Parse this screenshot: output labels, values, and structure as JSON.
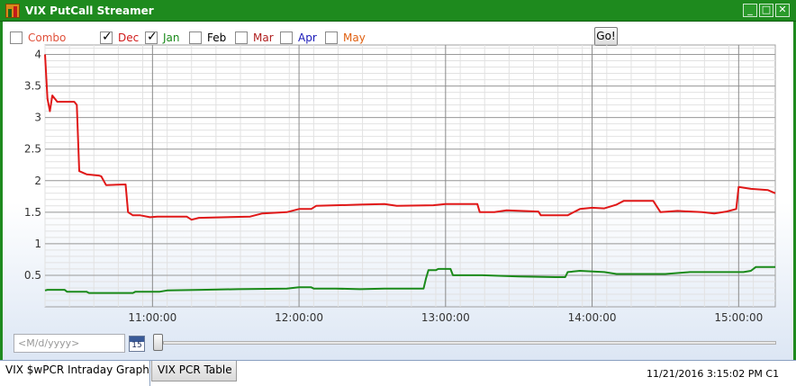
{
  "window": {
    "title": "VIX PutCall Streamer",
    "minimize_glyph": "_",
    "maximize_glyph": "□",
    "close_glyph": "✕",
    "frame_color": "#1e8a1e"
  },
  "toolbar": {
    "checkboxes": [
      {
        "label": "Combo",
        "checked": false,
        "color": "#e0503a"
      },
      {
        "label": "Dec",
        "checked": true,
        "color": "#d01818"
      },
      {
        "label": "Jan",
        "checked": true,
        "color": "#1a8a1a"
      },
      {
        "label": "Feb",
        "checked": false,
        "color": "#000000"
      },
      {
        "label": "Mar",
        "checked": false,
        "color": "#b02020"
      },
      {
        "label": "Apr",
        "checked": false,
        "color": "#1a1ab8"
      },
      {
        "label": "May",
        "checked": false,
        "color": "#e06010"
      }
    ],
    "go_label": "Go!"
  },
  "chart_data": {
    "type": "line",
    "title": "",
    "xlabel": "",
    "ylabel": "",
    "x_unit": "time",
    "xlim": [
      "10:16",
      "15:15"
    ],
    "ylim": [
      0,
      4.15
    ],
    "x_ticks": [
      "11:00:00",
      "12:00:00",
      "13:00:00",
      "14:00:00",
      "15:00:00"
    ],
    "y_ticks": [
      "0.5",
      "1",
      "1.5",
      "2",
      "2.5",
      "3",
      "3.5",
      "4"
    ],
    "grid": true,
    "legend": "none",
    "series": [
      {
        "color": "#e01818",
        "points": [
          [
            "10:16",
            4.0
          ],
          [
            "10:17",
            3.3
          ],
          [
            "10:18",
            3.1
          ],
          [
            "10:19",
            3.35
          ],
          [
            "10:21",
            3.25
          ],
          [
            "10:28",
            3.25
          ],
          [
            "10:29",
            3.2
          ],
          [
            "10:30",
            2.15
          ],
          [
            "10:33",
            2.1
          ],
          [
            "10:38",
            2.08
          ],
          [
            "10:39",
            2.07
          ],
          [
            "10:41",
            1.93
          ],
          [
            "10:49",
            1.94
          ],
          [
            "10:50",
            1.5
          ],
          [
            "10:52",
            1.45
          ],
          [
            "10:55",
            1.45
          ],
          [
            "10:59",
            1.42
          ],
          [
            "11:02",
            1.43
          ],
          [
            "11:14",
            1.43
          ],
          [
            "11:16",
            1.38
          ],
          [
            "11:19",
            1.41
          ],
          [
            "11:40",
            1.43
          ],
          [
            "11:45",
            1.48
          ],
          [
            "11:55",
            1.5
          ],
          [
            "12:00",
            1.55
          ],
          [
            "12:05",
            1.55
          ],
          [
            "12:07",
            1.6
          ],
          [
            "12:25",
            1.62
          ],
          [
            "12:35",
            1.63
          ],
          [
            "12:40",
            1.6
          ],
          [
            "12:55",
            1.61
          ],
          [
            "13:00",
            1.63
          ],
          [
            "13:13",
            1.63
          ],
          [
            "13:14",
            1.5
          ],
          [
            "13:20",
            1.5
          ],
          [
            "13:25",
            1.53
          ],
          [
            "13:38",
            1.51
          ],
          [
            "13:39",
            1.45
          ],
          [
            "13:45",
            1.45
          ],
          [
            "13:50",
            1.45
          ],
          [
            "13:55",
            1.55
          ],
          [
            "14:00",
            1.57
          ],
          [
            "14:05",
            1.56
          ],
          [
            "14:10",
            1.62
          ],
          [
            "14:13",
            1.68
          ],
          [
            "14:25",
            1.68
          ],
          [
            "14:28",
            1.5
          ],
          [
            "14:35",
            1.52
          ],
          [
            "14:45",
            1.5
          ],
          [
            "14:50",
            1.48
          ],
          [
            "14:55",
            1.51
          ],
          [
            "14:59",
            1.55
          ],
          [
            "15:00",
            1.9
          ],
          [
            "15:05",
            1.87
          ],
          [
            "15:12",
            1.85
          ],
          [
            "15:15",
            1.8
          ]
        ]
      },
      {
        "color": "#1a8a1a",
        "points": [
          [
            "10:16",
            0.26
          ],
          [
            "10:17",
            0.27
          ],
          [
            "10:24",
            0.27
          ],
          [
            "10:25",
            0.24
          ],
          [
            "10:33",
            0.24
          ],
          [
            "10:34",
            0.22
          ],
          [
            "10:52",
            0.22
          ],
          [
            "10:53",
            0.24
          ],
          [
            "11:03",
            0.24
          ],
          [
            "11:06",
            0.26
          ],
          [
            "11:20",
            0.27
          ],
          [
            "11:35",
            0.28
          ],
          [
            "11:55",
            0.29
          ],
          [
            "12:00",
            0.31
          ],
          [
            "12:05",
            0.31
          ],
          [
            "12:06",
            0.29
          ],
          [
            "12:15",
            0.29
          ],
          [
            "12:25",
            0.28
          ],
          [
            "12:35",
            0.29
          ],
          [
            "12:51",
            0.29
          ],
          [
            "12:52",
            0.45
          ],
          [
            "12:53",
            0.58
          ],
          [
            "12:56",
            0.58
          ],
          [
            "12:57",
            0.6
          ],
          [
            "13:02",
            0.6
          ],
          [
            "13:03",
            0.5
          ],
          [
            "13:15",
            0.5
          ],
          [
            "13:30",
            0.48
          ],
          [
            "13:45",
            0.47
          ],
          [
            "13:49",
            0.47
          ],
          [
            "13:50",
            0.55
          ],
          [
            "13:55",
            0.57
          ],
          [
            "14:05",
            0.55
          ],
          [
            "14:10",
            0.52
          ],
          [
            "14:30",
            0.52
          ],
          [
            "14:40",
            0.55
          ],
          [
            "14:55",
            0.55
          ],
          [
            "15:02",
            0.55
          ],
          [
            "15:05",
            0.57
          ],
          [
            "15:07",
            0.63
          ],
          [
            "15:15",
            0.63
          ]
        ]
      }
    ]
  },
  "date_picker": {
    "placeholder": "<M/d/yyyy>",
    "calendar_day": "15"
  },
  "slider": {
    "value": 0
  },
  "tabs": [
    {
      "label": "VIX $wPCR Intraday Graph",
      "active": true
    },
    {
      "label": "VIX PCR Table",
      "active": false
    }
  ],
  "status": {
    "timestamp": "11/21/2016 3:15:02 PM C1"
  }
}
